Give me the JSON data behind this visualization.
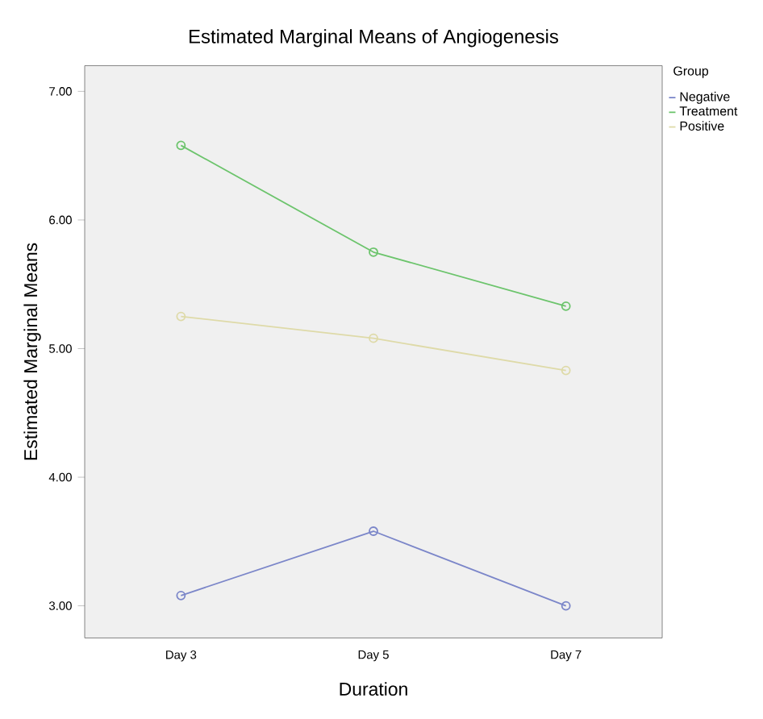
{
  "chart_data": {
    "type": "line",
    "title": "Estimated Marginal Means of Angiogenesis",
    "xlabel": "Duration",
    "ylabel": "Estimated Marginal Means",
    "legend_title": "Group",
    "categories": [
      "Day 3",
      "Day 5",
      "Day 7"
    ],
    "series": [
      {
        "name": "Negative",
        "color": "#7b86c9",
        "values": [
          3.08,
          3.58,
          3.0
        ]
      },
      {
        "name": "Treatment",
        "color": "#6cc46c",
        "values": [
          6.58,
          5.75,
          5.33
        ]
      },
      {
        "name": "Positive",
        "color": "#dedaa8",
        "values": [
          5.25,
          5.08,
          4.83
        ]
      }
    ],
    "ylim": [
      2.75,
      7.2
    ],
    "yticks": [
      {
        "value": 3,
        "label": "3.00"
      },
      {
        "value": 4,
        "label": "4.00"
      },
      {
        "value": 5,
        "label": "5.00"
      },
      {
        "value": 6,
        "label": "6.00"
      },
      {
        "value": 7,
        "label": "7.00"
      }
    ],
    "marker": "circle",
    "line_style": "solid",
    "legend": "top right",
    "grid": false
  }
}
